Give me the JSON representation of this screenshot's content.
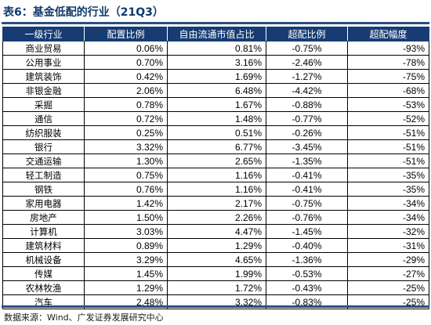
{
  "title": "表6：基金低配的行业（21Q3）",
  "columns": [
    "一级行业",
    "配置比例",
    "自由流通市值占比",
    "超配比例",
    "超配幅度"
  ],
  "rows": [
    [
      "商业贸易",
      "0.06%",
      "0.81%",
      "-0.75%",
      "-93%"
    ],
    [
      "公用事业",
      "0.70%",
      "3.16%",
      "-2.46%",
      "-78%"
    ],
    [
      "建筑装饰",
      "0.42%",
      "1.69%",
      "-1.27%",
      "-75%"
    ],
    [
      "非银金融",
      "2.06%",
      "6.48%",
      "-4.42%",
      "-68%"
    ],
    [
      "采掘",
      "0.78%",
      "1.67%",
      "-0.88%",
      "-53%"
    ],
    [
      "通信",
      "0.72%",
      "1.48%",
      "-0.77%",
      "-52%"
    ],
    [
      "纺织服装",
      "0.25%",
      "0.51%",
      "-0.26%",
      "-51%"
    ],
    [
      "银行",
      "3.32%",
      "6.77%",
      "-3.45%",
      "-51%"
    ],
    [
      "交通运输",
      "1.30%",
      "2.65%",
      "-1.35%",
      "-51%"
    ],
    [
      "轻工制造",
      "0.75%",
      "1.16%",
      "-0.41%",
      "-35%"
    ],
    [
      "钢铁",
      "0.76%",
      "1.16%",
      "-0.41%",
      "-35%"
    ],
    [
      "家用电器",
      "1.42%",
      "2.17%",
      "-0.75%",
      "-34%"
    ],
    [
      "房地产",
      "1.50%",
      "2.26%",
      "-0.76%",
      "-34%"
    ],
    [
      "计算机",
      "3.03%",
      "4.47%",
      "-1.45%",
      "-32%"
    ],
    [
      "建筑材料",
      "0.89%",
      "1.29%",
      "-0.40%",
      "-31%"
    ],
    [
      "机械设备",
      "3.29%",
      "4.65%",
      "-1.36%",
      "-29%"
    ],
    [
      "传媒",
      "1.45%",
      "1.99%",
      "-0.53%",
      "-27%"
    ],
    [
      "农林牧渔",
      "1.29%",
      "1.72%",
      "-0.43%",
      "-25%"
    ],
    [
      "汽车",
      "2.48%",
      "3.32%",
      "-0.83%",
      "-25%"
    ]
  ],
  "source": "数据来源：Wind、广发证券发展研究中心",
  "colors": {
    "header_bg": "#173c73",
    "header_text": "#ffffff",
    "title_text": "#0f3a6a",
    "rule": "#2a4e82"
  }
}
